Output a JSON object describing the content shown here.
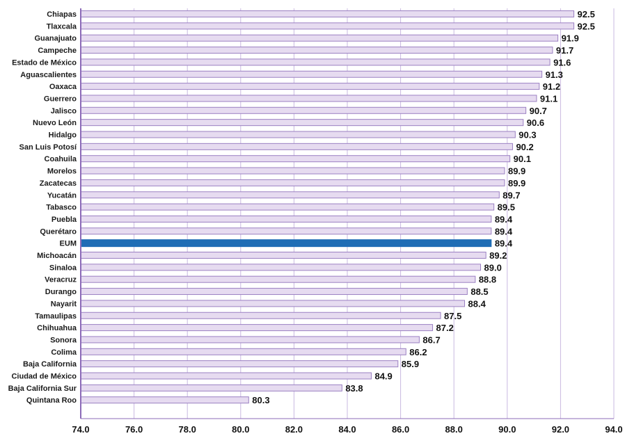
{
  "chart_data": {
    "type": "bar",
    "orientation": "horizontal",
    "categories": [
      "Chiapas",
      "Tlaxcala",
      "Guanajuato",
      "Campeche",
      "Estado de México",
      "Aguascalientes",
      "Oaxaca",
      "Guerrero",
      "Jalisco",
      "Nuevo León",
      "Hidalgo",
      "San Luis Potosí",
      "Coahuila",
      "Morelos",
      "Zacatecas",
      "Yucatán",
      "Tabasco",
      "Puebla",
      "Querétaro",
      "EUM",
      "Michoacán",
      "Sinaloa",
      "Veracruz",
      "Durango",
      "Nayarit",
      "Tamaulipas",
      "Chihuahua",
      "Sonora",
      "Colima",
      "Baja California",
      "Ciudad de México",
      "Baja California Sur",
      "Quintana Roo"
    ],
    "values": [
      92.5,
      92.5,
      91.9,
      91.7,
      91.6,
      91.3,
      91.2,
      91.1,
      90.7,
      90.6,
      90.3,
      90.2,
      90.1,
      89.9,
      89.9,
      89.7,
      89.5,
      89.4,
      89.4,
      89.4,
      89.2,
      89.0,
      88.8,
      88.5,
      88.4,
      87.5,
      87.2,
      86.7,
      86.2,
      85.9,
      84.9,
      83.8,
      80.3
    ],
    "value_labels": [
      "92.5",
      "92.5",
      "91.9",
      "91.7",
      "91.6",
      "91.3",
      "91.2",
      "91.1",
      "90.7",
      "90.6",
      "90.3",
      "90.2",
      "90.1",
      "89.9",
      "89.9",
      "89.7",
      "89.5",
      "89.4",
      "89.4",
      "89.4",
      "89.2",
      "89.0",
      "88.8",
      "88.5",
      "88.4",
      "87.5",
      "87.2",
      "86.7",
      "86.2",
      "85.9",
      "84.9",
      "83.8",
      "80.3"
    ],
    "highlight_category": "EUM",
    "xlim": [
      74.0,
      94.0
    ],
    "xticks": [
      74.0,
      76.0,
      78.0,
      80.0,
      82.0,
      84.0,
      86.0,
      88.0,
      90.0,
      92.0,
      94.0
    ],
    "xtick_labels": [
      "74.0",
      "76.0",
      "78.0",
      "80.0",
      "82.0",
      "84.0",
      "86.0",
      "88.0",
      "90.0",
      "92.0",
      "94.0"
    ],
    "title": "",
    "xlabel": "",
    "ylabel": "",
    "grid": true,
    "colors": {
      "bar_fill": "#e6dbf0",
      "bar_stroke": "#9b80c2",
      "highlight_fill": "#1f6db5",
      "grid": "#c9b8e0",
      "axis": "#8c6bb8"
    }
  }
}
